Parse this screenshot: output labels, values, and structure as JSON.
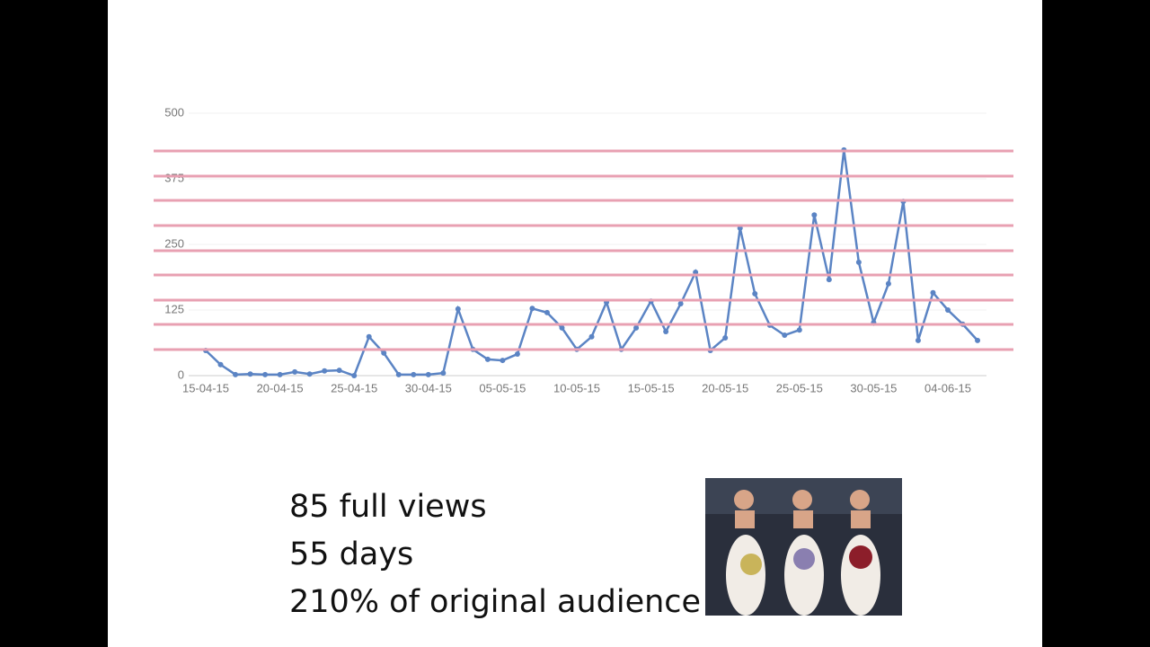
{
  "chart_data": {
    "type": "line",
    "categories": [
      "15-04-15",
      null,
      null,
      null,
      null,
      "20-04-15",
      null,
      null,
      null,
      null,
      "25-04-15",
      null,
      null,
      null,
      null,
      "30-04-15",
      null,
      null,
      null,
      null,
      "05-05-15",
      null,
      null,
      null,
      null,
      "10-05-15",
      null,
      null,
      null,
      null,
      "15-05-15",
      null,
      null,
      null,
      null,
      "20-05-15",
      null,
      null,
      null,
      null,
      "25-05-15",
      null,
      null,
      null,
      null,
      "30-05-15",
      null,
      null,
      null,
      null,
      "04-06-15",
      null,
      null
    ],
    "values": [
      48,
      21,
      2,
      3,
      2,
      2,
      7,
      3,
      9,
      10,
      0,
      74,
      43,
      2,
      2,
      2,
      5,
      127,
      50,
      31,
      29,
      41,
      128,
      120,
      91,
      50,
      74,
      140,
      50,
      91,
      142,
      84,
      137,
      197,
      48,
      72,
      281,
      156,
      96,
      77,
      87,
      306,
      183,
      430,
      216,
      101,
      175,
      332,
      67,
      158,
      125,
      98,
      67
    ],
    "color": "#5b84c4",
    "ylim": [
      0,
      500
    ],
    "yticks": [
      0,
      125,
      250,
      375,
      500
    ],
    "grid": true
  },
  "notes": {
    "lines": [
      "85 full views",
      "55 days",
      "210% of original audience"
    ]
  }
}
